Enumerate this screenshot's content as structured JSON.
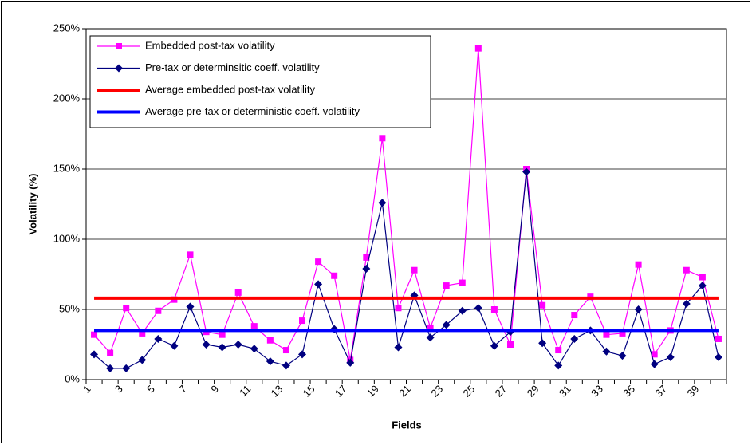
{
  "chart_data": {
    "type": "line",
    "xlabel": "Fields",
    "ylabel": "Volatility (%)",
    "categories": [
      "1",
      null,
      "3",
      null,
      "5",
      null,
      "7",
      null,
      "9",
      null,
      "11",
      null,
      "13",
      null,
      "15",
      null,
      "17",
      null,
      "19",
      null,
      "21",
      null,
      "23",
      null,
      "25",
      null,
      "27",
      null,
      "29",
      null,
      "31",
      null,
      "33",
      null,
      "35",
      null,
      "37",
      null,
      "39",
      null
    ],
    "series": [
      {
        "name": "Embedded post-tax volatility",
        "color": "#ff00ff",
        "marker": "square",
        "values": [
          32,
          19,
          51,
          33,
          49,
          57,
          89,
          34,
          32,
          62,
          38,
          28,
          21,
          42,
          84,
          74,
          14,
          87,
          172,
          51,
          78,
          37,
          67,
          69,
          236,
          50,
          25,
          150,
          53,
          21,
          46,
          59,
          32,
          33,
          82,
          18,
          35,
          78,
          73,
          29
        ]
      },
      {
        "name": "Pre-tax or determinsitic coeff. volatility",
        "color": "#000080",
        "marker": "diamond",
        "values": [
          18,
          8,
          8,
          14,
          29,
          24,
          52,
          25,
          23,
          25,
          22,
          13,
          10,
          18,
          68,
          36,
          12,
          79,
          126,
          23,
          60,
          30,
          39,
          49,
          51,
          24,
          34,
          148,
          26,
          10,
          29,
          35,
          20,
          17,
          50,
          11,
          16,
          54,
          67,
          16
        ]
      },
      {
        "name": "Average embedded post-tax volatility",
        "color": "#ff0000",
        "value": 58
      },
      {
        "name": "Average pre-tax or deterministic coeff. volatility",
        "color": "#0000ff",
        "value": 35
      }
    ],
    "ylim": [
      0,
      250
    ],
    "yticks": [
      {
        "value": 0,
        "label": "0%"
      },
      {
        "value": 50,
        "label": "50%"
      },
      {
        "value": 100,
        "label": "100%"
      },
      {
        "value": 150,
        "label": "150%"
      },
      {
        "value": 200,
        "label": "200%"
      },
      {
        "value": 250,
        "label": "250%"
      }
    ],
    "grid": true
  }
}
